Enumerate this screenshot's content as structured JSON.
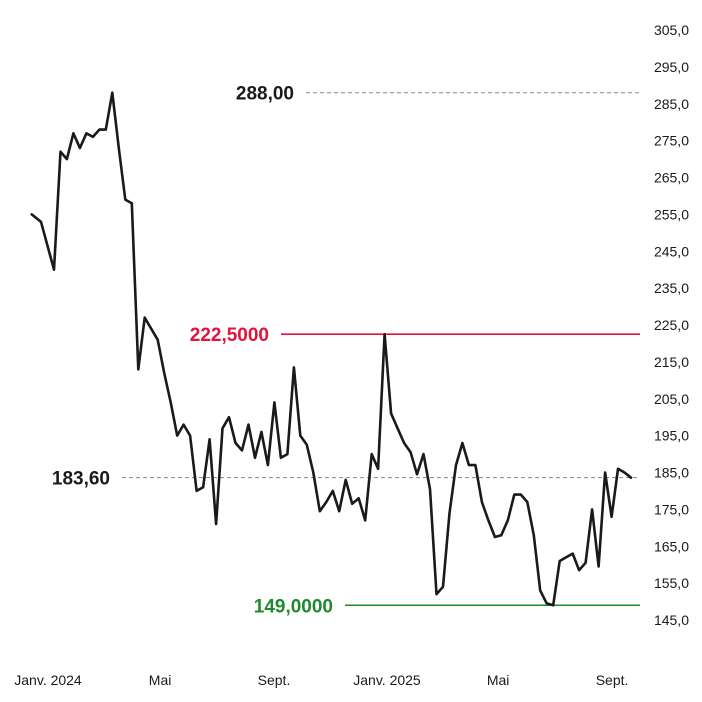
{
  "chart_data": {
    "type": "line",
    "title": "",
    "xlabel": "",
    "ylabel": "",
    "ylim": [
      140.0,
      310.0
    ],
    "y_ticks": [
      "305,0",
      "295,0",
      "285,0",
      "275,0",
      "265,0",
      "255,0",
      "245,0",
      "235,0",
      "225,0",
      "215,0",
      "205,0",
      "195,0",
      "185,0",
      "175,0",
      "165,0",
      "155,0",
      "145,0"
    ],
    "y_tick_values": [
      305,
      295,
      285,
      275,
      265,
      255,
      245,
      235,
      225,
      215,
      205,
      195,
      185,
      175,
      165,
      155,
      145
    ],
    "x_ticks": [
      "Janv. 2024",
      "Mai",
      "Sept.",
      "Janv. 2025",
      "Mai",
      "Sept."
    ],
    "x_tick_dates": [
      "2024-01-01",
      "2024-05-01",
      "2024-09-01",
      "2025-01-01",
      "2025-05-01",
      "2025-09-01"
    ],
    "grid": false,
    "reference_lines": [
      {
        "label": "288,00",
        "value": 288.0,
        "style": "dashed",
        "color": "#888888",
        "label_color": "#1a1a1a"
      },
      {
        "label": "222,5000",
        "value": 222.5,
        "style": "solid",
        "color": "#e0143c",
        "label_color": "#e0143c"
      },
      {
        "label": "183,60",
        "value": 183.6,
        "style": "dashed",
        "color": "#888888",
        "label_color": "#1a1a1a"
      },
      {
        "label": "149,0000",
        "value": 149.0,
        "style": "solid",
        "color": "#1f8a2e",
        "label_color": "#1f8a2e"
      }
    ],
    "series": [
      {
        "color": "#1a1a1a",
        "x": [
          "2023-12-22",
          "2024-01-01",
          "2024-01-15",
          "2024-01-22",
          "2024-01-29",
          "2024-02-05",
          "2024-02-12",
          "2024-02-19",
          "2024-02-26",
          "2024-03-04",
          "2024-03-11",
          "2024-03-18",
          "2024-03-25",
          "2024-04-01",
          "2024-04-08",
          "2024-04-15",
          "2024-04-22",
          "2024-04-29",
          "2024-05-06",
          "2024-05-13",
          "2024-05-20",
          "2024-05-27",
          "2024-06-03",
          "2024-06-10",
          "2024-06-17",
          "2024-06-24",
          "2024-07-01",
          "2024-07-08",
          "2024-07-15",
          "2024-07-22",
          "2024-07-29",
          "2024-08-05",
          "2024-08-12",
          "2024-08-19",
          "2024-08-26",
          "2024-09-02",
          "2024-09-09",
          "2024-09-16",
          "2024-09-23",
          "2024-09-30",
          "2024-10-07",
          "2024-10-14",
          "2024-10-21",
          "2024-10-28",
          "2024-11-04",
          "2024-11-11",
          "2024-11-18",
          "2024-11-25",
          "2024-12-02",
          "2024-12-09",
          "2024-12-16",
          "2024-12-23",
          "2024-12-30",
          "2025-01-06",
          "2025-01-13",
          "2025-01-20",
          "2025-01-27",
          "2025-02-03",
          "2025-02-10",
          "2025-02-17",
          "2025-02-24",
          "2025-03-03",
          "2025-03-10",
          "2025-03-17",
          "2025-03-24",
          "2025-03-31",
          "2025-04-07",
          "2025-04-14",
          "2025-04-21",
          "2025-04-28",
          "2025-05-05",
          "2025-05-12",
          "2025-05-19",
          "2025-05-26",
          "2025-06-02",
          "2025-06-09",
          "2025-06-16",
          "2025-06-23",
          "2025-06-30",
          "2025-07-07",
          "2025-07-14",
          "2025-07-21",
          "2025-07-28",
          "2025-08-04",
          "2025-08-11",
          "2025-08-18",
          "2025-08-25",
          "2025-09-01",
          "2025-09-08",
          "2025-09-15",
          "2025-09-22",
          "2025-09-29"
        ],
        "y": [
          255.0,
          253.0,
          240.0,
          272.0,
          270.0,
          277.0,
          273.0,
          277.0,
          276.0,
          278.0,
          278.0,
          288.0,
          273.0,
          259.0,
          258.0,
          213.0,
          227.0,
          224.0,
          221.0,
          212.0,
          204.0,
          195.0,
          198.0,
          195.0,
          180.0,
          181.0,
          194.0,
          171.0,
          197.0,
          200.0,
          193.0,
          191.0,
          198.0,
          189.0,
          196.0,
          187.0,
          204.0,
          189.0,
          190.0,
          213.5,
          195.0,
          192.5,
          185.0,
          174.5,
          177.0,
          180.0,
          174.5,
          183.0,
          176.5,
          178.0,
          172.0,
          190.0,
          186.0,
          222.5,
          201.0,
          197.0,
          193.0,
          190.5,
          184.5,
          190.0,
          180.5,
          152.0,
          154.0,
          174.0,
          187.0,
          193.0,
          187.0,
          187.0,
          177.0,
          172.0,
          167.5,
          168.0,
          172.0,
          179.0,
          179.0,
          177.0,
          168.0,
          153.0,
          149.5,
          149.0,
          161.0,
          162.0,
          163.0,
          158.5,
          160.5,
          175.0,
          159.5,
          185.0,
          173.0,
          186.0,
          185.0,
          183.6
        ]
      }
    ]
  }
}
